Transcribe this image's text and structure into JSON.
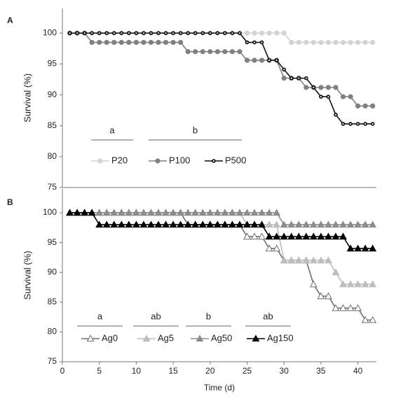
{
  "chart_data": [
    {
      "type": "line",
      "panel_label": "A",
      "y_label": "Survival (%)",
      "x": [
        1,
        2,
        3,
        4,
        5,
        6,
        7,
        8,
        9,
        10,
        11,
        12,
        13,
        14,
        15,
        16,
        17,
        18,
        19,
        20,
        21,
        22,
        23,
        24,
        25,
        26,
        27,
        28,
        29,
        30,
        31,
        32,
        33,
        34,
        35,
        36,
        37,
        38,
        39,
        40,
        41,
        42
      ],
      "xlim": [
        0,
        42.5
      ],
      "ylim": [
        75,
        104
      ],
      "yticks": [
        75,
        80,
        85,
        90,
        95,
        100
      ],
      "annotations": [
        "a",
        "b"
      ],
      "series": [
        {
          "name": "P20",
          "color": "#d3d3d3",
          "marker": "circle",
          "values": [
            100,
            100,
            100,
            100,
            100,
            100,
            100,
            100,
            100,
            100,
            100,
            100,
            100,
            100,
            100,
            100,
            100,
            100,
            100,
            100,
            100,
            100,
            100,
            100,
            100,
            100,
            100,
            100,
            100,
            100,
            98.5,
            98.5,
            98.5,
            98.5,
            98.5,
            98.5,
            98.5,
            98.5,
            98.5,
            98.5,
            98.5,
            98.5
          ]
        },
        {
          "name": "P100",
          "color": "#808080",
          "marker": "circle",
          "values": [
            100,
            100,
            100,
            98.5,
            98.5,
            98.5,
            98.5,
            98.5,
            98.5,
            98.5,
            98.5,
            98.5,
            98.5,
            98.5,
            98.5,
            98.5,
            97,
            97,
            97,
            97,
            97,
            97,
            97,
            97,
            95.6,
            95.6,
            95.6,
            95.6,
            95.6,
            92.7,
            92.7,
            92.7,
            91.2,
            91.2,
            91.2,
            91.2,
            91.2,
            89.7,
            89.7,
            88.2,
            88.2,
            88.2
          ]
        },
        {
          "name": "P500",
          "color": "#111111",
          "marker": "circle-dot",
          "values": [
            100,
            100,
            100,
            100,
            100,
            100,
            100,
            100,
            100,
            100,
            100,
            100,
            100,
            100,
            100,
            100,
            100,
            100,
            100,
            100,
            100,
            100,
            100,
            100,
            98.5,
            98.5,
            98.5,
            95.6,
            95.6,
            94.1,
            92.7,
            92.7,
            92.7,
            91.2,
            89.7,
            89.7,
            86.8,
            85.3,
            85.3,
            85.3,
            85.3,
            85.3
          ]
        }
      ]
    },
    {
      "type": "line",
      "panel_label": "B",
      "y_label": "Survival (%)",
      "x_label": "Time (d)",
      "x": [
        1,
        2,
        3,
        4,
        5,
        6,
        7,
        8,
        9,
        10,
        11,
        12,
        13,
        14,
        15,
        16,
        17,
        18,
        19,
        20,
        21,
        22,
        23,
        24,
        25,
        26,
        27,
        28,
        29,
        30,
        31,
        32,
        33,
        34,
        35,
        36,
        37,
        38,
        39,
        40,
        41,
        42
      ],
      "xlim": [
        0,
        42.5
      ],
      "xticks": [
        0,
        5,
        10,
        15,
        20,
        25,
        30,
        35,
        40
      ],
      "ylim": [
        75,
        104
      ],
      "yticks": [
        75,
        80,
        85,
        90,
        95,
        100
      ],
      "annotations": [
        "a",
        "ab",
        "b",
        "ab"
      ],
      "series": [
        {
          "name": "Ag0",
          "color": "#6e6e6e",
          "marker": "triangle-open",
          "values": [
            100,
            100,
            100,
            100,
            100,
            100,
            100,
            100,
            100,
            100,
            100,
            100,
            100,
            100,
            100,
            100,
            98,
            98,
            98,
            98,
            98,
            98,
            98,
            98,
            96,
            96,
            96,
            94,
            94,
            92,
            92,
            92,
            92,
            88,
            86,
            86,
            84,
            84,
            84,
            84,
            82,
            82
          ]
        },
        {
          "name": "Ag5",
          "color": "#bdbdbd",
          "marker": "triangle",
          "values": [
            100,
            100,
            100,
            100,
            100,
            100,
            100,
            100,
            100,
            100,
            100,
            100,
            100,
            100,
            100,
            100,
            100,
            100,
            100,
            100,
            100,
            100,
            100,
            100,
            98,
            98,
            98,
            98,
            98,
            92,
            92,
            92,
            92,
            92,
            92,
            92,
            90,
            88,
            88,
            88,
            88,
            88
          ]
        },
        {
          "name": "Ag50",
          "color": "#8c8c8c",
          "marker": "triangle",
          "values": [
            100,
            100,
            100,
            100,
            100,
            100,
            100,
            100,
            100,
            100,
            100,
            100,
            100,
            100,
            100,
            100,
            100,
            100,
            100,
            100,
            100,
            100,
            100,
            100,
            100,
            100,
            100,
            100,
            100,
            98,
            98,
            98,
            98,
            98,
            98,
            98,
            98,
            98,
            98,
            98,
            98,
            98
          ]
        },
        {
          "name": "Ag150",
          "color": "#000000",
          "marker": "triangle",
          "values": [
            100,
            100,
            100,
            100,
            98,
            98,
            98,
            98,
            98,
            98,
            98,
            98,
            98,
            98,
            98,
            98,
            98,
            98,
            98,
            98,
            98,
            98,
            98,
            98,
            98,
            98,
            98,
            96,
            96,
            96,
            96,
            96,
            96,
            96,
            96,
            96,
            96,
            96,
            94,
            94,
            94,
            94
          ]
        }
      ]
    }
  ]
}
